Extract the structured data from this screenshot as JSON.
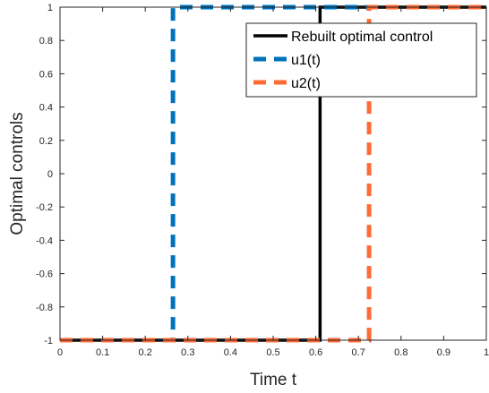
{
  "chart_data": {
    "type": "line",
    "xlabel": "Time t",
    "ylabel": "Optimal controls",
    "xlim": [
      0,
      1
    ],
    "ylim": [
      -1,
      1
    ],
    "xticks": [
      "0",
      "0.1",
      "0.2",
      "0.3",
      "0.4",
      "0.5",
      "0.6",
      "0.7",
      "0.8",
      "0.9",
      "1"
    ],
    "yticks": [
      "-1",
      "-0.8",
      "-0.6",
      "-0.4",
      "-0.2",
      "0",
      "0.2",
      "0.4",
      "0.6",
      "0.8",
      "1"
    ],
    "grid": false,
    "legend_position": "top-right",
    "series": [
      {
        "name": "Rebuilt optimal control",
        "color": "#000000",
        "style": "solid",
        "x": [
          0,
          0.61,
          0.61,
          1
        ],
        "y": [
          -1,
          -1,
          1,
          1
        ]
      },
      {
        "name": "u1(t)",
        "color": "#0072BD",
        "style": "dashed",
        "x": [
          0,
          0.265,
          0.265,
          1
        ],
        "y": [
          -1,
          -1,
          1,
          1
        ]
      },
      {
        "name": "u2(t)",
        "color": "#FF6B35",
        "style": "dashed",
        "x": [
          0,
          0.725,
          0.725,
          1
        ],
        "y": [
          -1,
          -1,
          1,
          1
        ]
      }
    ]
  }
}
